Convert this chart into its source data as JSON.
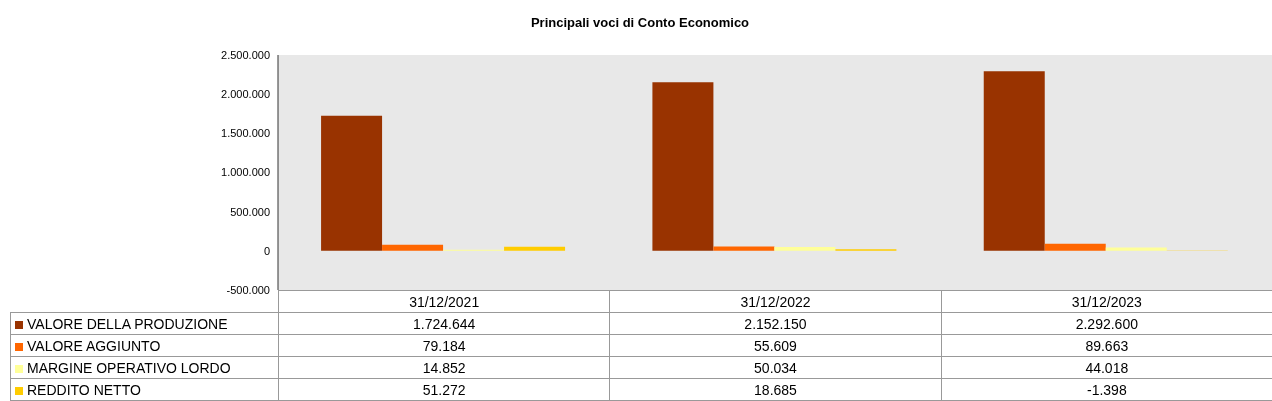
{
  "chart_data": {
    "type": "bar",
    "title": "Principali voci di Conto Economico",
    "categories": [
      "31/12/2021",
      "31/12/2022",
      "31/12/2023"
    ],
    "series": [
      {
        "name": "VALORE DELLA PRODUZIONE",
        "color": "#993300",
        "values": [
          1724644,
          2152150,
          2292600
        ],
        "value_labels": [
          "1.724.644",
          "2.152.150",
          "2.292.600"
        ]
      },
      {
        "name": "VALORE AGGIUNTO",
        "color": "#ff6600",
        "values": [
          79184,
          55609,
          89663
        ],
        "value_labels": [
          "79.184",
          "55.609",
          "89.663"
        ]
      },
      {
        "name": "MARGINE OPERATIVO LORDO",
        "color": "#ffff99",
        "values": [
          14852,
          50034,
          44018
        ],
        "value_labels": [
          "14.852",
          "50.034",
          "44.018"
        ]
      },
      {
        "name": "REDDITO NETTO",
        "color": "#ffcc00",
        "values": [
          51272,
          18685,
          -1398
        ],
        "value_labels": [
          "51.272",
          "18.685",
          "-1.398"
        ]
      }
    ],
    "ylim": [
      -500000,
      2500000
    ],
    "yticks": [
      {
        "value": -500000,
        "label": "-500.000"
      },
      {
        "value": 0,
        "label": "0"
      },
      {
        "value": 500000,
        "label": "500.000"
      },
      {
        "value": 1000000,
        "label": "1.000.000"
      },
      {
        "value": 1500000,
        "label": "1.500.000"
      },
      {
        "value": 2000000,
        "label": "2.000.000"
      },
      {
        "value": 2500000,
        "label": "2.500.000"
      }
    ],
    "grid": false,
    "legend": "bottom"
  }
}
